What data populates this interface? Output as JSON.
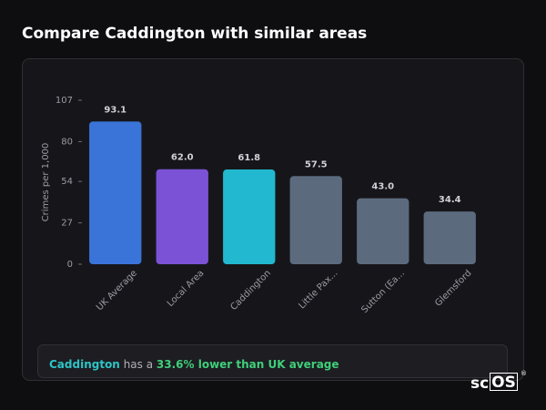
{
  "chart_data": {
    "type": "bar",
    "title": "Compare Caddington with similar areas",
    "y_label": "Crimes per 1,000",
    "categories": [
      "UK Average",
      "Local Area",
      "Caddington",
      "Little Pax...",
      "Sutton (Ea...",
      "Glemsford"
    ],
    "values": [
      93.1,
      62.0,
      61.8,
      57.5,
      43.0,
      34.4
    ],
    "value_labels": [
      "93.1",
      "62.0",
      "61.8",
      "57.5",
      "43.0",
      "34.4"
    ],
    "colors": [
      "#3b74d8",
      "#7b52d6",
      "#22b8cf",
      "#5c6a7e",
      "#5c6a7e",
      "#5c6a7e"
    ],
    "ylim": [
      0,
      107
    ],
    "yticks": [
      0,
      27,
      54,
      80,
      107
    ],
    "grid": false
  },
  "footer": {
    "area": "Caddington",
    "connector": "has a",
    "highlight": "33.6% lower than UK average"
  },
  "logo": {
    "prefix": "sc",
    "boxed": "OS",
    "mark": "®"
  }
}
